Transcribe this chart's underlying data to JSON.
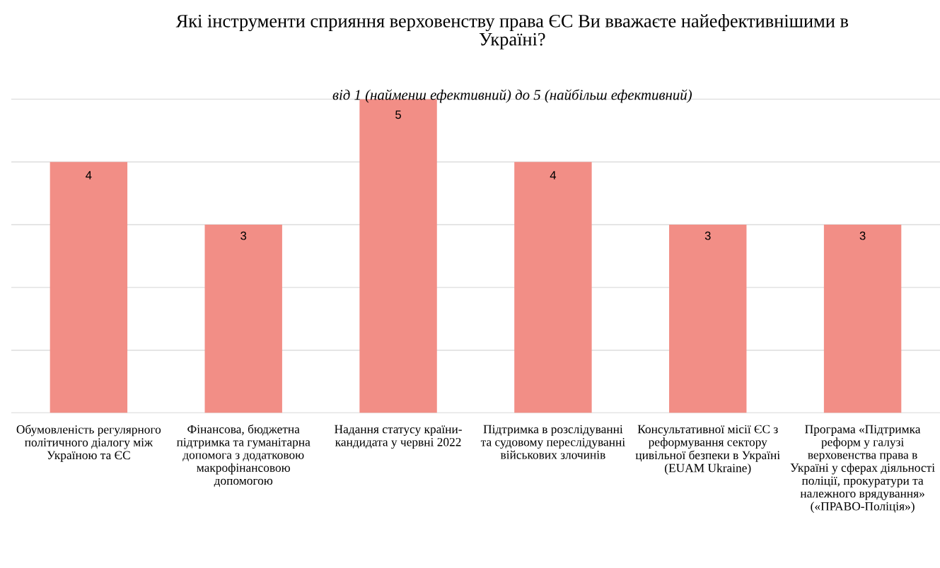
{
  "chart_data": {
    "type": "bar",
    "title": "Які інструменти сприяння верховенству права ЄС Ви вважаєте найефективнішими в\nУкраїні?",
    "subtitle": "від 1 (найменш ефективний) до 5 (найбільш ефективний)",
    "categories": [
      "Обумовленість регулярного\nполітичного діалогу між\nУкраїною та ЄС",
      "Фінансова, бюджетна\nпідтримка та гуманітарна\nдопомога з додатковою\nмакрофінансовою\nдопомогою",
      "Надання статусу країни-\nкандидата у червні 2022",
      "Підтримка в розслідуванні\nта судовому переслідуванні\nвійськових злочинів",
      "Консультативної місії ЄС з\nреформування сектору\nцивільної безпеки в Україні\n(EUAM Ukraine)",
      "Програма «Підтримка\nреформ у галузі\nверховенства права в\nУкраїні у сферах діяльності\nполіції, прокуратури та\nналежного врядування»\n(«ПРАВО-Поліція»)"
    ],
    "values": [
      4,
      3,
      5,
      4,
      3,
      3
    ],
    "data_labels": true,
    "color": "#f28e86",
    "grid": "y",
    "legend": false
  }
}
